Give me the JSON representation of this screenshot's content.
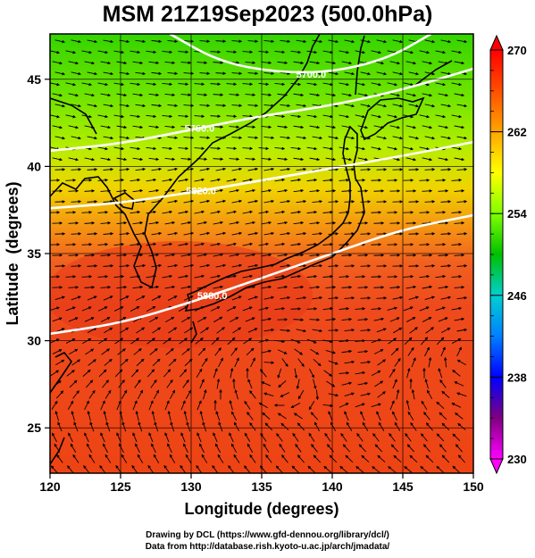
{
  "title": "MSM 21Z19Sep2023 (500.0hPa)",
  "xlabel": "Longitude (degrees)",
  "ylabel": "Latitude  (degrees)",
  "lon_range": [
    120,
    150
  ],
  "lat_range": [
    22.4,
    47.6
  ],
  "lon_ticks": [
    "120",
    "125",
    "130",
    "135",
    "140",
    "145",
    "150"
  ],
  "lat_ticks": [
    "25",
    "30",
    "35",
    "40",
    "45"
  ],
  "colorbar": {
    "min": 230,
    "max": 270,
    "labels": [
      "270",
      "262",
      "254",
      "246",
      "238",
      "230"
    ],
    "colors": [
      "#ff00ff",
      "#800080",
      "#0000ff",
      "#00bfff",
      "#00e0c0",
      "#00e000",
      "#80ff00",
      "#ffff00",
      "#ffa500",
      "#ff4500",
      "#ff0000"
    ]
  },
  "contours": [
    {
      "label": "5880.0",
      "points": [
        [
          120,
          30.4
        ],
        [
          125,
          31.0
        ],
        [
          130,
          32.2
        ],
        [
          135,
          33.6
        ],
        [
          140,
          35.0
        ],
        [
          145,
          36.4
        ],
        [
          150,
          37.2
        ]
      ],
      "label_at": [
        131.5,
        32.6
      ]
    },
    {
      "label": "5820.0",
      "points": [
        [
          120,
          37.6
        ],
        [
          125,
          37.9
        ],
        [
          130,
          38.5
        ],
        [
          135,
          39.2
        ],
        [
          140,
          39.9
        ],
        [
          145,
          40.6
        ],
        [
          150,
          41.4
        ]
      ],
      "label_at": [
        130.7,
        38.6
      ]
    },
    {
      "label": "5760.0",
      "points": [
        [
          120,
          40.9
        ],
        [
          125,
          41.3
        ],
        [
          130,
          42.1
        ],
        [
          135,
          42.9
        ],
        [
          140,
          43.5
        ],
        [
          145,
          44.4
        ],
        [
          150,
          45.6
        ]
      ],
      "label_at": [
        130.6,
        42.2
      ]
    },
    {
      "label": "5700.0",
      "points": [
        [
          128.5,
          47.6
        ],
        [
          132,
          46.0
        ],
        [
          136,
          45.4
        ],
        [
          140,
          45.4
        ],
        [
          144,
          46.2
        ],
        [
          147,
          47.6
        ]
      ],
      "label_at": [
        138.5,
        45.3
      ]
    }
  ],
  "credit_line1": "Drawing by DCL (https://www.gfd-dennou.org/library/dcl/)",
  "credit_line2": "Data from http://database.rish.kyoto-u.ac.jp/arch/jmadata/"
}
